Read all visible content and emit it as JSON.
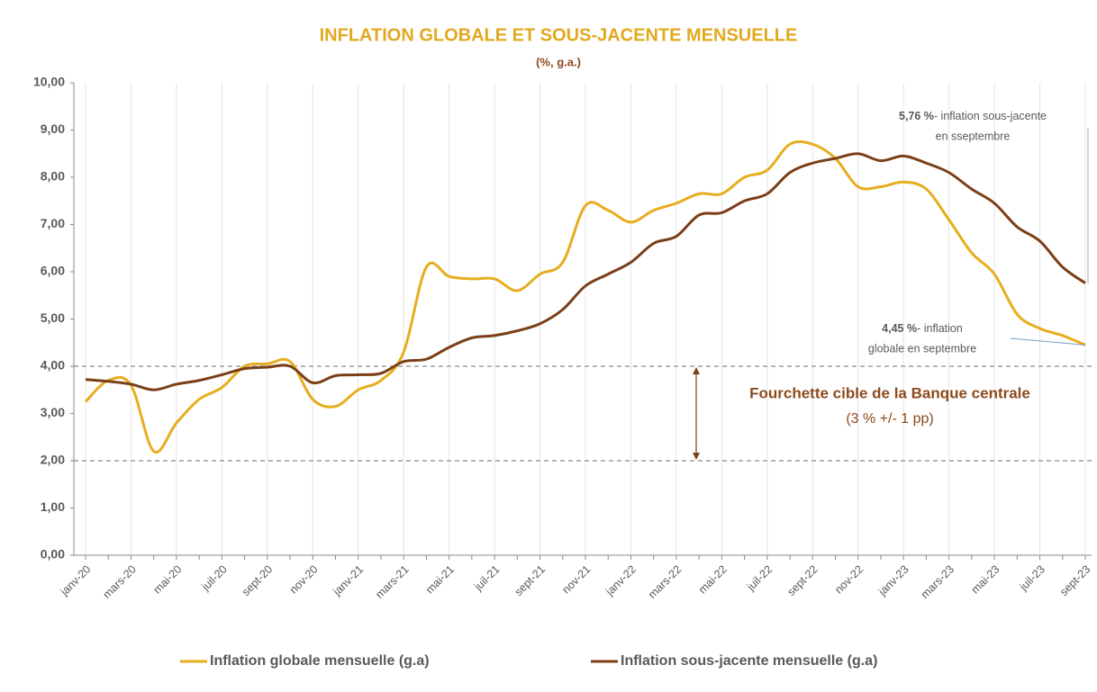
{
  "chart_data": {
    "type": "line",
    "title": "INFLATION GLOBALE ET SOUS-JACENTE MENSUELLE",
    "subtitle": "(%, g.a.)",
    "categories": [
      "janv-20",
      null,
      "mars-20",
      null,
      "mai-20",
      null,
      "juil-20",
      null,
      "sept-20",
      null,
      "nov-20",
      null,
      "janv-21",
      null,
      "mars-21",
      null,
      "mai-21",
      null,
      "juil-21",
      null,
      "sept-21",
      null,
      "nov-21",
      null,
      "janv-22",
      null,
      "mars-22",
      null,
      "mai-22",
      null,
      "juil-22",
      null,
      "sept-22",
      null,
      "nov-22",
      null,
      "janv-23",
      null,
      "mars-23",
      null,
      "mai-23",
      null,
      "juil-23",
      null,
      "sept-23"
    ],
    "series": [
      {
        "name": "Inflation globale mensuelle (g.a)",
        "color": "#e6ad1e",
        "values": [
          3.25,
          3.7,
          3.6,
          2.2,
          2.8,
          3.3,
          3.55,
          4.0,
          4.05,
          4.1,
          3.3,
          3.15,
          3.5,
          3.7,
          4.3,
          6.1,
          5.9,
          5.85,
          5.85,
          5.6,
          5.95,
          6.2,
          7.4,
          7.3,
          7.05,
          7.3,
          7.45,
          7.65,
          7.65,
          8.0,
          8.15,
          8.7,
          8.7,
          8.4,
          7.8,
          7.8,
          7.9,
          7.75,
          7.1,
          6.4,
          5.95,
          5.1,
          4.8,
          4.65,
          4.45
        ]
      },
      {
        "name": "Inflation sous-jacente mensuelle (g.a)",
        "color": "#7b3f17",
        "values": [
          3.72,
          3.68,
          3.62,
          3.5,
          3.62,
          3.7,
          3.82,
          3.95,
          3.98,
          4.0,
          3.65,
          3.8,
          3.82,
          3.85,
          4.1,
          4.15,
          4.4,
          4.6,
          4.65,
          4.75,
          4.9,
          5.2,
          5.7,
          5.95,
          6.2,
          6.6,
          6.75,
          7.2,
          7.25,
          7.5,
          7.65,
          8.1,
          8.3,
          8.4,
          8.5,
          8.35,
          8.45,
          8.3,
          8.1,
          7.75,
          7.45,
          6.95,
          6.65,
          6.1,
          5.76
        ]
      }
    ],
    "ylim": [
      0,
      10
    ],
    "yticks": [
      {
        "value": 0,
        "label": "0,00"
      },
      {
        "value": 1,
        "label": "1,00"
      },
      {
        "value": 2,
        "label": "2,00"
      },
      {
        "value": 3,
        "label": "3,00"
      },
      {
        "value": 4,
        "label": "4,00"
      },
      {
        "value": 5,
        "label": "5,00"
      },
      {
        "value": 6,
        "label": "6,00"
      },
      {
        "value": 7,
        "label": "7,00"
      },
      {
        "value": 8,
        "label": "8,00"
      },
      {
        "value": 9,
        "label": "9,00"
      },
      {
        "value": 10,
        "label": "10,00"
      }
    ],
    "reference_lines": [
      4,
      2
    ],
    "band_label": "Fourchette cible de la Banque centrale",
    "band_sublabel": "(3 % +/- 1 pp)",
    "annotations": [
      {
        "bold": "5,76 %",
        "text": "- inflation sous-jacente",
        "text2": "en sseptembre"
      },
      {
        "bold": "4,45 %",
        "text": "- inflation",
        "text2": "globale en septembre"
      }
    ],
    "legend": "bottom"
  }
}
